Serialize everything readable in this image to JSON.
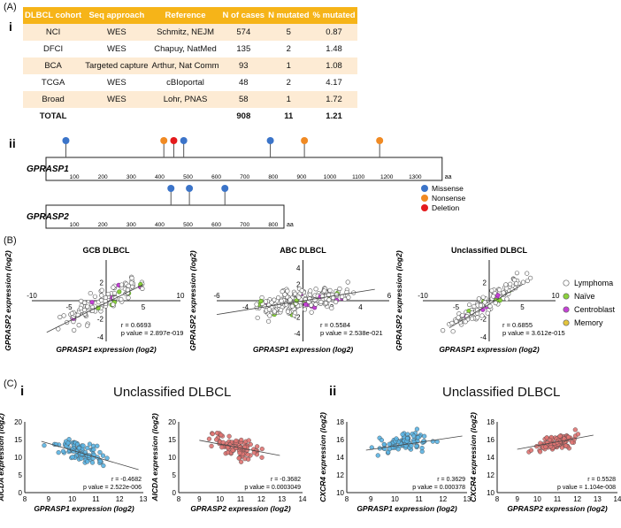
{
  "panel_labels": {
    "A": "(A)",
    "A_i": "i",
    "A_ii": "ii",
    "B": "(B)",
    "C": "(C)",
    "C_i": "i",
    "C_ii": "ii"
  },
  "table": {
    "headers": [
      "DLBCL cohort",
      "Seq approach",
      "Reference",
      "N of cases",
      "N mutated",
      "% mutated"
    ],
    "rows": [
      [
        "NCI",
        "WES",
        "Schmitz, NEJM",
        "574",
        "5",
        "0.87"
      ],
      [
        "DFCI",
        "WES",
        "Chapuy, NatMed",
        "135",
        "2",
        "1.48"
      ],
      [
        "BCA",
        "Targeted capture",
        "Arthur, Nat Comm",
        "93",
        "1",
        "1.08"
      ],
      [
        "TCGA",
        "WES",
        "cBIoportal",
        "48",
        "2",
        "4.17"
      ],
      [
        "Broad",
        "WES",
        "Lohr, PNAS",
        "58",
        "1",
        "1.72"
      ]
    ],
    "total": [
      "TOTAL",
      "",
      "",
      "908",
      "11",
      "1.21"
    ]
  },
  "lollipop": {
    "unit": "aa",
    "legend": [
      {
        "label": "Missense",
        "color": "#3b74c9"
      },
      {
        "label": "Nonsense",
        "color": "#f08a23"
      },
      {
        "label": "Deletion",
        "color": "#e41a1c"
      }
    ],
    "genes": [
      {
        "name": "GPRASP1",
        "length": 1395,
        "ticks": [
          "100",
          "200",
          "300",
          "400",
          "500",
          "600",
          "700",
          "800",
          "900",
          "1000",
          "1100",
          "1200",
          "1300"
        ],
        "mutations": [
          {
            "pos": 70,
            "type": "Missense"
          },
          {
            "pos": 415,
            "type": "Nonsense"
          },
          {
            "pos": 450,
            "type": "Deletion"
          },
          {
            "pos": 485,
            "type": "Missense"
          },
          {
            "pos": 790,
            "type": "Missense"
          },
          {
            "pos": 910,
            "type": "Nonsense"
          },
          {
            "pos": 1175,
            "type": "Nonsense"
          }
        ]
      },
      {
        "name": "GPRASP2",
        "length": 838,
        "ticks": [
          "100",
          "200",
          "300",
          "400",
          "500",
          "600",
          "700",
          "800"
        ],
        "mutations": [
          {
            "pos": 440,
            "type": "Missense"
          },
          {
            "pos": 505,
            "type": "Missense"
          },
          {
            "pos": 630,
            "type": "Missense"
          }
        ]
      }
    ]
  },
  "chart_data": [
    {
      "type": "scatter",
      "title": "GCB DLBCL",
      "xlabel": "GPRASP1 expression (log2)",
      "ylabel": "GPRASP2 expression (log2)",
      "xlim": [
        -10,
        10
      ],
      "ylim": [
        -4.5,
        4.5
      ],
      "xticks": [
        "-10",
        "-5",
        "5",
        "10"
      ],
      "yticks": [
        "-4",
        "-2",
        "2"
      ],
      "r": "r = 0.6693",
      "p": "p value = 2.897e-019",
      "trend": [
        [
          -8,
          -3.5
        ],
        [
          5,
          1.8
        ]
      ],
      "seed": 11,
      "n": 120,
      "slope": 0.4,
      "spread": 0.9
    },
    {
      "type": "scatter",
      "title": "ABC DLBCL",
      "xlabel": "GPRASP1 expression (log2)",
      "ylabel": "GPRASP2 expression (log2)",
      "xlim": [
        -6,
        6
      ],
      "ylim": [
        -5,
        5
      ],
      "xticks": [
        "-6",
        "-4",
        "-2",
        "2",
        "4",
        "6"
      ],
      "yticks": [
        "-4",
        "-2",
        "2",
        "4"
      ],
      "r": "r = 0.5584",
      "p": "p value = 2.538e-021",
      "trend": [
        [
          -6,
          -1.7
        ],
        [
          5,
          1.4
        ]
      ],
      "seed": 23,
      "n": 230,
      "slope": 0.28,
      "spread": 1.0
    },
    {
      "type": "scatter",
      "title": "Unclassified DLBCL",
      "xlabel": "GPRASP1 expression (log2)",
      "ylabel": "GPRASP2 expression (log2)",
      "xlim": [
        -10,
        10
      ],
      "ylim": [
        -4.5,
        4.5
      ],
      "xticks": [
        "-10",
        "-5",
        "5",
        "10"
      ],
      "yticks": [
        "-4",
        "-2",
        "2"
      ],
      "r": "r = 0.6855",
      "p": "p value = 3.612e-015",
      "trend": [
        [
          -6,
          -3
        ],
        [
          5,
          1.8
        ]
      ],
      "seed": 37,
      "n": 110,
      "slope": 0.45,
      "spread": 0.85
    },
    {
      "type": "scatter",
      "title": "",
      "xlabel": "GPRASP1 expression (log2)",
      "ylabel": "AICDA expression (log2)",
      "xlim": [
        8,
        13
      ],
      "ylim": [
        0,
        20
      ],
      "xticks": [
        "8",
        "9",
        "10",
        "11",
        "12",
        "13"
      ],
      "yticks": [
        "0",
        "5",
        "10",
        "15",
        "20"
      ],
      "r": "r = -0.4682",
      "p": "p value = 2.522e-006",
      "trend": [
        [
          8.7,
          14.5
        ],
        [
          12.8,
          6.5
        ]
      ],
      "color": "#5bb4e3",
      "seed": 41,
      "n": 90,
      "slope": -2.0,
      "spread": 2.2,
      "cx": 10.3,
      "cy": 11.5
    },
    {
      "type": "scatter",
      "title": "",
      "xlabel": "GPRASP2 expression (log2)",
      "ylabel": "AICDA expression (log2)",
      "xlim": [
        8,
        14
      ],
      "ylim": [
        0,
        20
      ],
      "xticks": [
        "8",
        "9",
        "10",
        "11",
        "12",
        "13",
        "14"
      ],
      "yticks": [
        "0",
        "5",
        "10",
        "15",
        "20"
      ],
      "r": "r = -0.3682",
      "p": "p value = 0.0003049",
      "trend": [
        [
          9,
          14.8
        ],
        [
          12.9,
          10.5
        ]
      ],
      "color": "#e07472",
      "seed": 53,
      "n": 90,
      "slope": -1.1,
      "spread": 2.0,
      "cx": 10.8,
      "cy": 12.8
    },
    {
      "type": "scatter",
      "title": "",
      "xlabel": "GPRASP1 expression (log2)",
      "ylabel": "CXCR4 expression (log2)",
      "xlim": [
        8,
        13
      ],
      "ylim": [
        10,
        18
      ],
      "xticks": [
        "8",
        "9",
        "10",
        "11",
        "12",
        "13"
      ],
      "yticks": [
        "10",
        "12",
        "14",
        "16",
        "18"
      ],
      "r": "r = 0.3629",
      "p": "p value = 0.000378",
      "trend": [
        [
          8.8,
          14.8
        ],
        [
          12.8,
          16.4
        ]
      ],
      "color": "#5bb4e3",
      "seed": 67,
      "n": 90,
      "slope": 0.4,
      "spread": 0.7,
      "cx": 10.4,
      "cy": 15.7
    },
    {
      "type": "scatter",
      "title": "",
      "xlabel": "GPRASP2 expression (log2)",
      "ylabel": "CXCR4 expression (log2)",
      "xlim": [
        8,
        14
      ],
      "ylim": [
        10,
        18
      ],
      "xticks": [
        "8",
        "9",
        "10",
        "11",
        "12",
        "13",
        "14"
      ],
      "yticks": [
        "10",
        "12",
        "14",
        "16",
        "18"
      ],
      "r": "r = 0.5528",
      "p": "p value = 1.104e-008",
      "trend": [
        [
          9,
          14.9
        ],
        [
          12.8,
          16.5
        ]
      ],
      "color": "#e07472",
      "seed": 79,
      "n": 95,
      "slope": 0.45,
      "spread": 0.55,
      "cx": 11.0,
      "cy": 15.7
    }
  ],
  "b_legend": [
    {
      "label": "Lymphoma",
      "color": "#ffffff"
    },
    {
      "label": "Naïve",
      "color": "#8cd23c"
    },
    {
      "label": "Centroblast",
      "color": "#c542d6"
    },
    {
      "label": "Memory",
      "color": "#e4c53c"
    }
  ],
  "c_titles": [
    "Unclassified DLBCL",
    "Unclassified DLBCL"
  ]
}
